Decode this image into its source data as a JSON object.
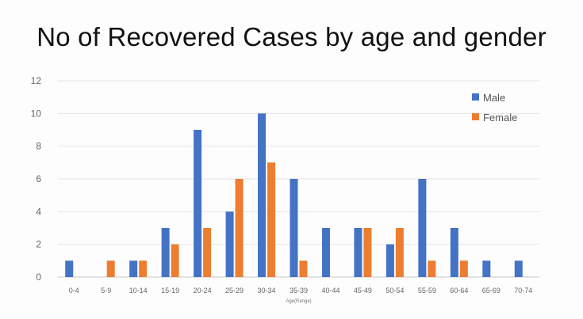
{
  "chart_data": {
    "type": "bar",
    "title": "No of Recovered Cases by age and gender",
    "xlabel": "Age(Range)",
    "ylabel": "",
    "ylim": [
      0,
      12
    ],
    "yticks": [
      0,
      2,
      4,
      6,
      8,
      10,
      12
    ],
    "grid": true,
    "legend_position": "top-right",
    "categories": [
      "0-4",
      "5-9",
      "10-14",
      "15-19",
      "20-24",
      "25-29",
      "30-34",
      "35-39",
      "40-44",
      "45-49",
      "50-54",
      "55-59",
      "60-64",
      "65-69",
      "70-74"
    ],
    "series": [
      {
        "name": "Male",
        "color": "#4472C4",
        "values": [
          1,
          0,
          1,
          3,
          9,
          4,
          10,
          6,
          3,
          3,
          2,
          6,
          3,
          1,
          1
        ]
      },
      {
        "name": "Female",
        "color": "#ED7D31",
        "values": [
          0,
          1,
          1,
          2,
          3,
          6,
          7,
          1,
          0,
          3,
          3,
          1,
          1,
          0,
          0
        ]
      }
    ]
  }
}
